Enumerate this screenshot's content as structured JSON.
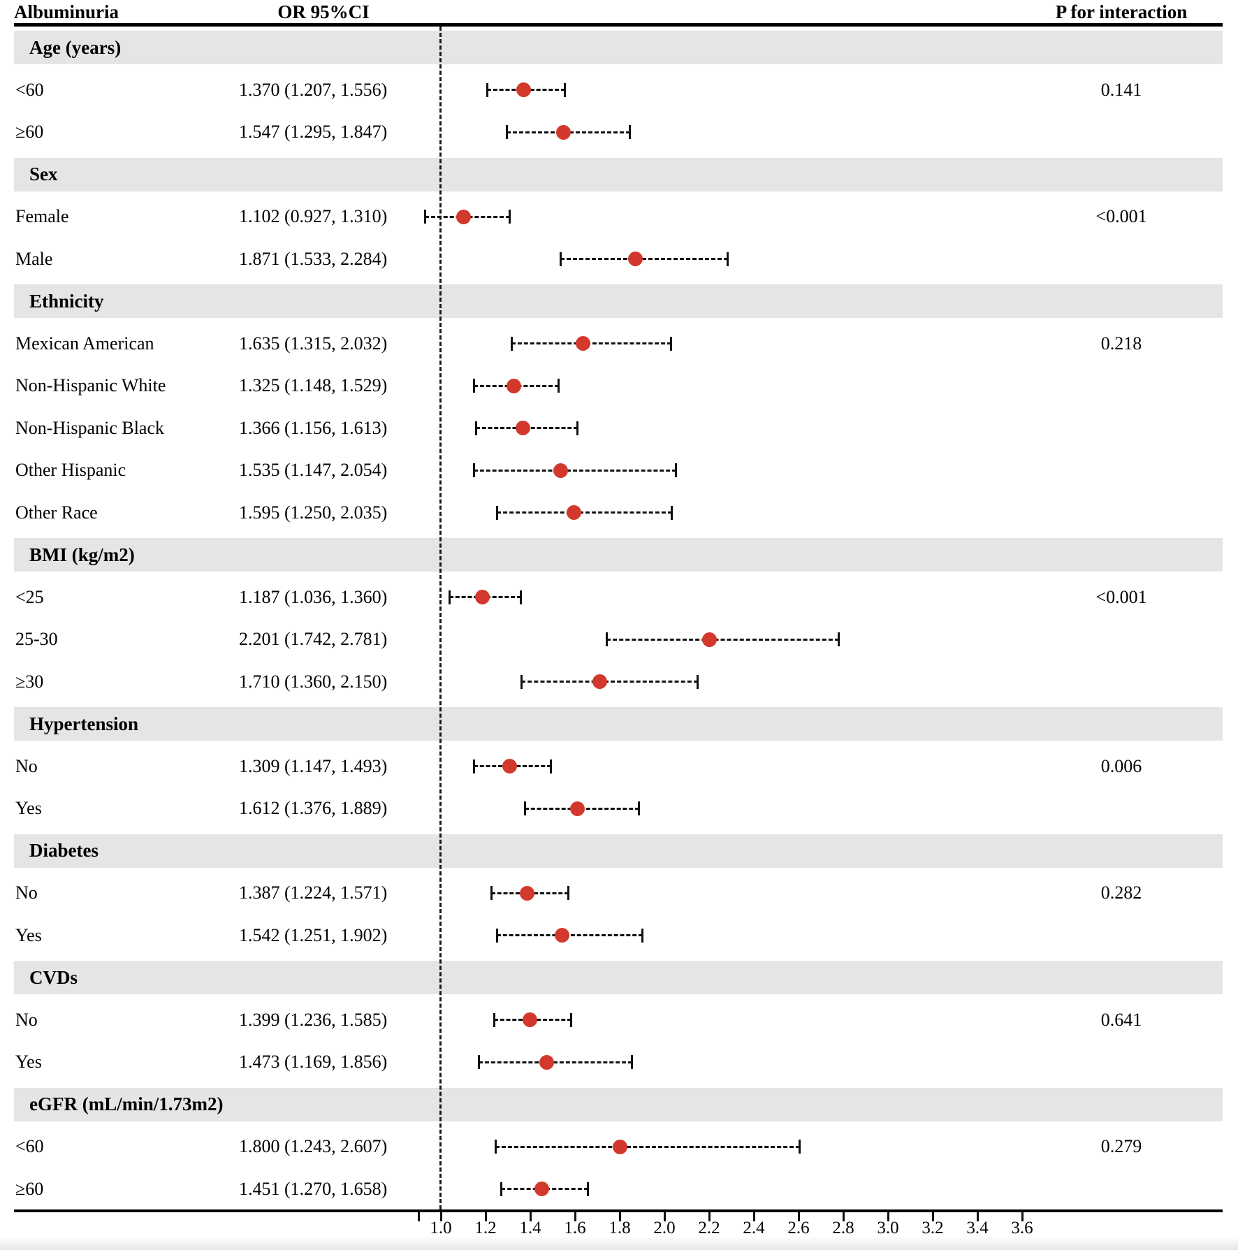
{
  "header": {
    "albuminuria": "Albuminuria",
    "or_ci": "OR 95%CI",
    "p_interaction": "P for interaction"
  },
  "colors": {
    "dot_red": "#d2382c",
    "band_gray": "#e5e5e5",
    "line_black": "#111111"
  },
  "chart_data": {
    "type": "forest",
    "title": "",
    "xlabel": "",
    "columns": [
      "Albuminuria",
      "OR 95%CI",
      "P for interaction"
    ],
    "axis": {
      "reference_line": 1.0,
      "labeled_min": 1.0,
      "labeled_max": 3.6,
      "step": 0.2,
      "extra_unlabeled_tick": 0.9,
      "tick_labels": [
        "1.0",
        "1.2",
        "1.4",
        "1.6",
        "1.8",
        "2.0",
        "2.2",
        "2.4",
        "2.6",
        "2.8",
        "3.0",
        "3.2",
        "3.4",
        "3.6"
      ]
    },
    "groups": [
      {
        "label": "Age (years)",
        "p_for_interaction": "0.141",
        "rows": [
          {
            "label": "<60",
            "or": 1.37,
            "lo": 1.207,
            "hi": 1.556,
            "ci_text": "1.370 (1.207, 1.556)"
          },
          {
            "label": "≥60",
            "or": 1.547,
            "lo": 1.295,
            "hi": 1.847,
            "ci_text": "1.547 (1.295, 1.847)"
          }
        ]
      },
      {
        "label": "Sex",
        "p_for_interaction": "<0.001",
        "rows": [
          {
            "label": "Female",
            "or": 1.102,
            "lo": 0.927,
            "hi": 1.31,
            "ci_text": "1.102 (0.927, 1.310)"
          },
          {
            "label": "Male",
            "or": 1.871,
            "lo": 1.533,
            "hi": 2.284,
            "ci_text": "1.871 (1.533, 2.284)"
          }
        ]
      },
      {
        "label": "Ethnicity",
        "p_for_interaction": "0.218",
        "rows": [
          {
            "label": "Mexican American",
            "or": 1.635,
            "lo": 1.315,
            "hi": 2.032,
            "ci_text": "1.635 (1.315, 2.032)"
          },
          {
            "label": "Non-Hispanic White",
            "or": 1.325,
            "lo": 1.148,
            "hi": 1.529,
            "ci_text": "1.325 (1.148, 1.529)"
          },
          {
            "label": "Non-Hispanic Black",
            "or": 1.366,
            "lo": 1.156,
            "hi": 1.613,
            "ci_text": "1.366 (1.156, 1.613)"
          },
          {
            "label": "Other Hispanic",
            "or": 1.535,
            "lo": 1.147,
            "hi": 2.054,
            "ci_text": "1.535 (1.147, 2.054)"
          },
          {
            "label": "Other Race",
            "or": 1.595,
            "lo": 1.25,
            "hi": 2.035,
            "ci_text": "1.595 (1.250, 2.035)"
          }
        ]
      },
      {
        "label": "BMI (kg/m2)",
        "p_for_interaction": "<0.001",
        "rows": [
          {
            "label": "<25",
            "or": 1.187,
            "lo": 1.036,
            "hi": 1.36,
            "ci_text": "1.187 (1.036, 1.360)"
          },
          {
            "label": "25-30",
            "or": 2.201,
            "lo": 1.742,
            "hi": 2.781,
            "ci_text": "2.201 (1.742, 2.781)"
          },
          {
            "label": "≥30",
            "or": 1.71,
            "lo": 1.36,
            "hi": 2.15,
            "ci_text": "1.710 (1.360, 2.150)"
          }
        ]
      },
      {
        "label": "Hypertension",
        "p_for_interaction": "0.006",
        "rows": [
          {
            "label": "No",
            "or": 1.309,
            "lo": 1.147,
            "hi": 1.493,
            "ci_text": "1.309 (1.147, 1.493)"
          },
          {
            "label": "Yes",
            "or": 1.612,
            "lo": 1.376,
            "hi": 1.889,
            "ci_text": "1.612 (1.376, 1.889)"
          }
        ]
      },
      {
        "label": "Diabetes",
        "p_for_interaction": "0.282",
        "rows": [
          {
            "label": "No",
            "or": 1.387,
            "lo": 1.224,
            "hi": 1.571,
            "ci_text": "1.387 (1.224, 1.571)"
          },
          {
            "label": "Yes",
            "or": 1.542,
            "lo": 1.251,
            "hi": 1.902,
            "ci_text": "1.542 (1.251, 1.902)"
          }
        ]
      },
      {
        "label": "CVDs",
        "p_for_interaction": "0.641",
        "rows": [
          {
            "label": "No",
            "or": 1.399,
            "lo": 1.236,
            "hi": 1.585,
            "ci_text": "1.399 (1.236, 1.585)"
          },
          {
            "label": "Yes",
            "or": 1.473,
            "lo": 1.169,
            "hi": 1.856,
            "ci_text": "1.473 (1.169, 1.856)"
          }
        ]
      },
      {
        "label": "eGFR (mL/min/1.73m2)",
        "p_for_interaction": "0.279",
        "rows": [
          {
            "label": "<60",
            "or": 1.8,
            "lo": 1.243,
            "hi": 2.607,
            "ci_text": "1.800 (1.243, 2.607)"
          },
          {
            "label": "≥60",
            "or": 1.451,
            "lo": 1.27,
            "hi": 1.658,
            "ci_text": "1.451 (1.270, 1.658)"
          }
        ]
      }
    ]
  }
}
